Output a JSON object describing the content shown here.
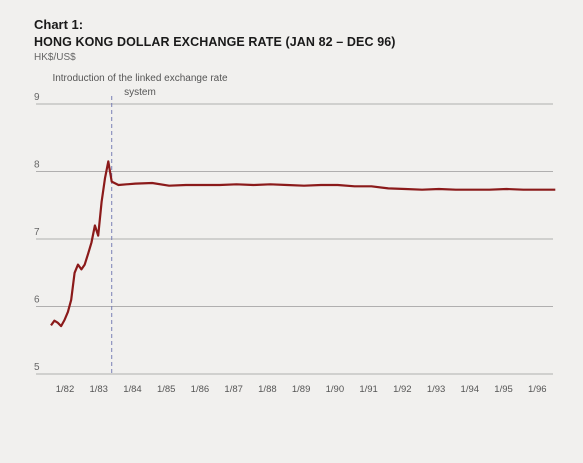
{
  "chart_data": {
    "type": "line",
    "title": "Chart 1:",
    "subtitle": "HONG KONG DOLLAR EXCHANGE RATE (JAN 82 – DEC 96)",
    "ylabel": "HK$/US$",
    "xlabel": "",
    "ylim": [
      5,
      9
    ],
    "yticks": [
      5,
      6,
      7,
      8,
      9
    ],
    "xlim": [
      1982.0,
      1997.0
    ],
    "xticks": [
      {
        "x": 1982.0,
        "label": "1/82"
      },
      {
        "x": 1983.0,
        "label": "1/83"
      },
      {
        "x": 1984.0,
        "label": "1/84"
      },
      {
        "x": 1985.0,
        "label": "1/85"
      },
      {
        "x": 1986.0,
        "label": "1/86"
      },
      {
        "x": 1987.0,
        "label": "1/87"
      },
      {
        "x": 1988.0,
        "label": "1/88"
      },
      {
        "x": 1989.0,
        "label": "1/89"
      },
      {
        "x": 1990.0,
        "label": "1/90"
      },
      {
        "x": 1991.0,
        "label": "1/91"
      },
      {
        "x": 1992.0,
        "label": "1/92"
      },
      {
        "x": 1993.0,
        "label": "1/93"
      },
      {
        "x": 1994.0,
        "label": "1/94"
      },
      {
        "x": 1995.0,
        "label": "1/95"
      },
      {
        "x": 1996.0,
        "label": "1/96"
      }
    ],
    "grid": true,
    "annotation": {
      "text": "Introduction of the linked exchange rate system",
      "x": 1983.8
    },
    "series": [
      {
        "color": "#8b1a1a",
        "points": [
          [
            1982.0,
            5.72
          ],
          [
            1982.1,
            5.79
          ],
          [
            1982.2,
            5.76
          ],
          [
            1982.3,
            5.71
          ],
          [
            1982.4,
            5.8
          ],
          [
            1982.5,
            5.92
          ],
          [
            1982.6,
            6.1
          ],
          [
            1982.7,
            6.5
          ],
          [
            1982.8,
            6.62
          ],
          [
            1982.9,
            6.55
          ],
          [
            1983.0,
            6.62
          ],
          [
            1983.1,
            6.78
          ],
          [
            1983.2,
            6.95
          ],
          [
            1983.3,
            7.2
          ],
          [
            1983.4,
            7.05
          ],
          [
            1983.5,
            7.55
          ],
          [
            1983.6,
            7.9
          ],
          [
            1983.7,
            8.15
          ],
          [
            1983.8,
            7.85
          ],
          [
            1984.0,
            7.8
          ],
          [
            1984.5,
            7.82
          ],
          [
            1985.0,
            7.83
          ],
          [
            1985.5,
            7.79
          ],
          [
            1986.0,
            7.8
          ],
          [
            1986.5,
            7.8
          ],
          [
            1987.0,
            7.8
          ],
          [
            1987.5,
            7.81
          ],
          [
            1988.0,
            7.8
          ],
          [
            1988.5,
            7.81
          ],
          [
            1989.0,
            7.8
          ],
          [
            1989.5,
            7.79
          ],
          [
            1990.0,
            7.8
          ],
          [
            1990.5,
            7.8
          ],
          [
            1991.0,
            7.78
          ],
          [
            1991.5,
            7.78
          ],
          [
            1992.0,
            7.75
          ],
          [
            1992.5,
            7.74
          ],
          [
            1993.0,
            7.73
          ],
          [
            1993.5,
            7.74
          ],
          [
            1994.0,
            7.73
          ],
          [
            1994.5,
            7.73
          ],
          [
            1995.0,
            7.73
          ],
          [
            1995.5,
            7.74
          ],
          [
            1996.0,
            7.73
          ],
          [
            1996.5,
            7.73
          ],
          [
            1996.95,
            7.73
          ]
        ]
      }
    ]
  }
}
